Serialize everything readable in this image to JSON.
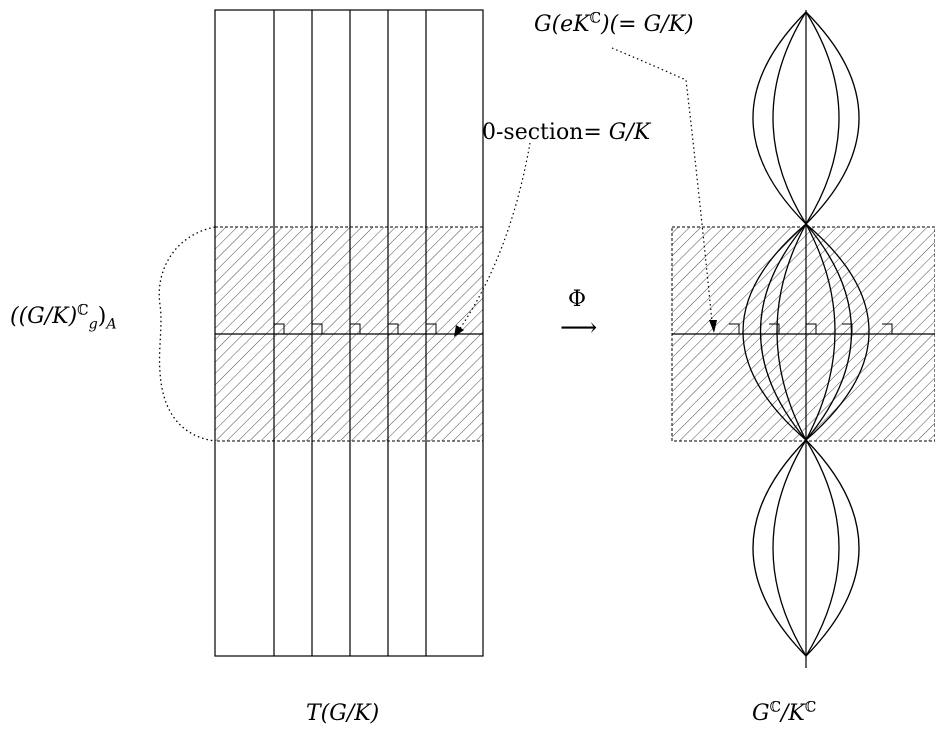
{
  "colors": {
    "stroke": "#000000",
    "background": "#ffffff"
  },
  "labels": {
    "left_bundle": "((G/K)",
    "left_bundle_sup": "ℂ",
    "left_bundle_sub": "g",
    "left_bundle_tail": ")",
    "left_bundle_sub2": "A",
    "map_symbol": "Φ",
    "arrow": "⟶",
    "zero_section_prefix": "0-section=",
    "zero_section_value": "G/K",
    "orbit_pre": "G(eK",
    "orbit_sup": "ℂ",
    "orbit_post": ")(= G/K)",
    "tangent_bundle": "T(G/K)",
    "complexification_G": "G",
    "complexification_sup1": "ℂ",
    "complexification_mid": "/K",
    "complexification_sup2": "ℂ"
  }
}
